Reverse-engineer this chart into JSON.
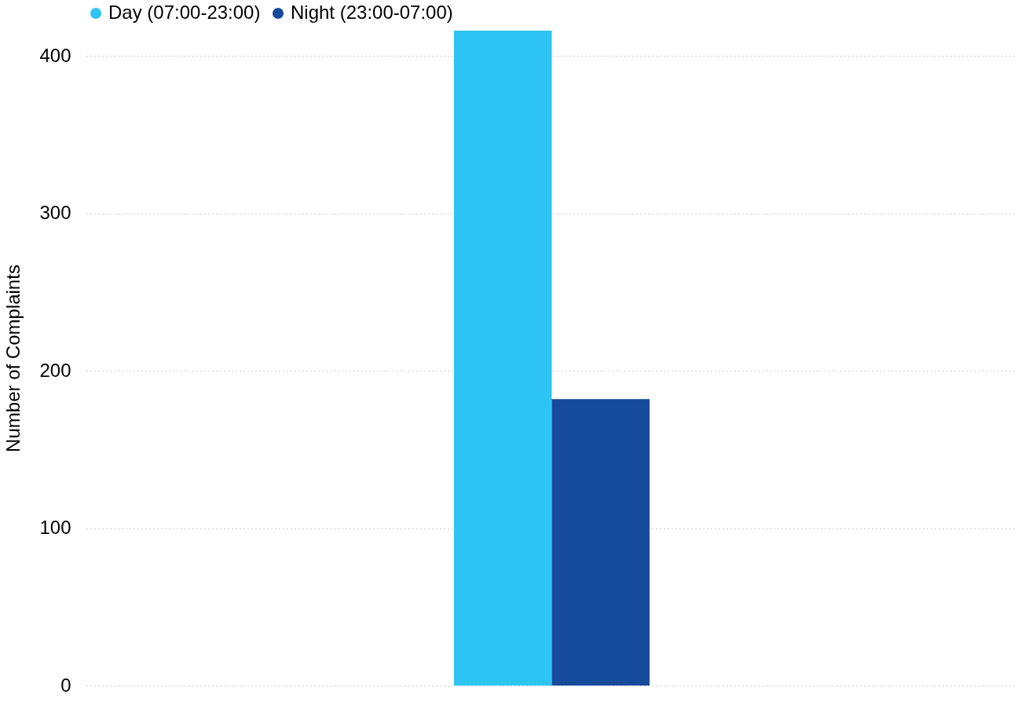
{
  "chart_data": {
    "type": "bar",
    "ylabel": "Number of Complaints",
    "categories": [
      null
    ],
    "series": [
      {
        "name": "Day (07:00-23:00)",
        "color": "#2ec4f3",
        "values": [
          416
        ]
      },
      {
        "name": "Night (23:00-07:00)",
        "color": "#164a9b",
        "values": [
          182
        ]
      }
    ],
    "ylim": [
      0,
      416
    ],
    "yticks": [
      0,
      100,
      200,
      300,
      400
    ],
    "grid": "y",
    "legend": "top left"
  }
}
